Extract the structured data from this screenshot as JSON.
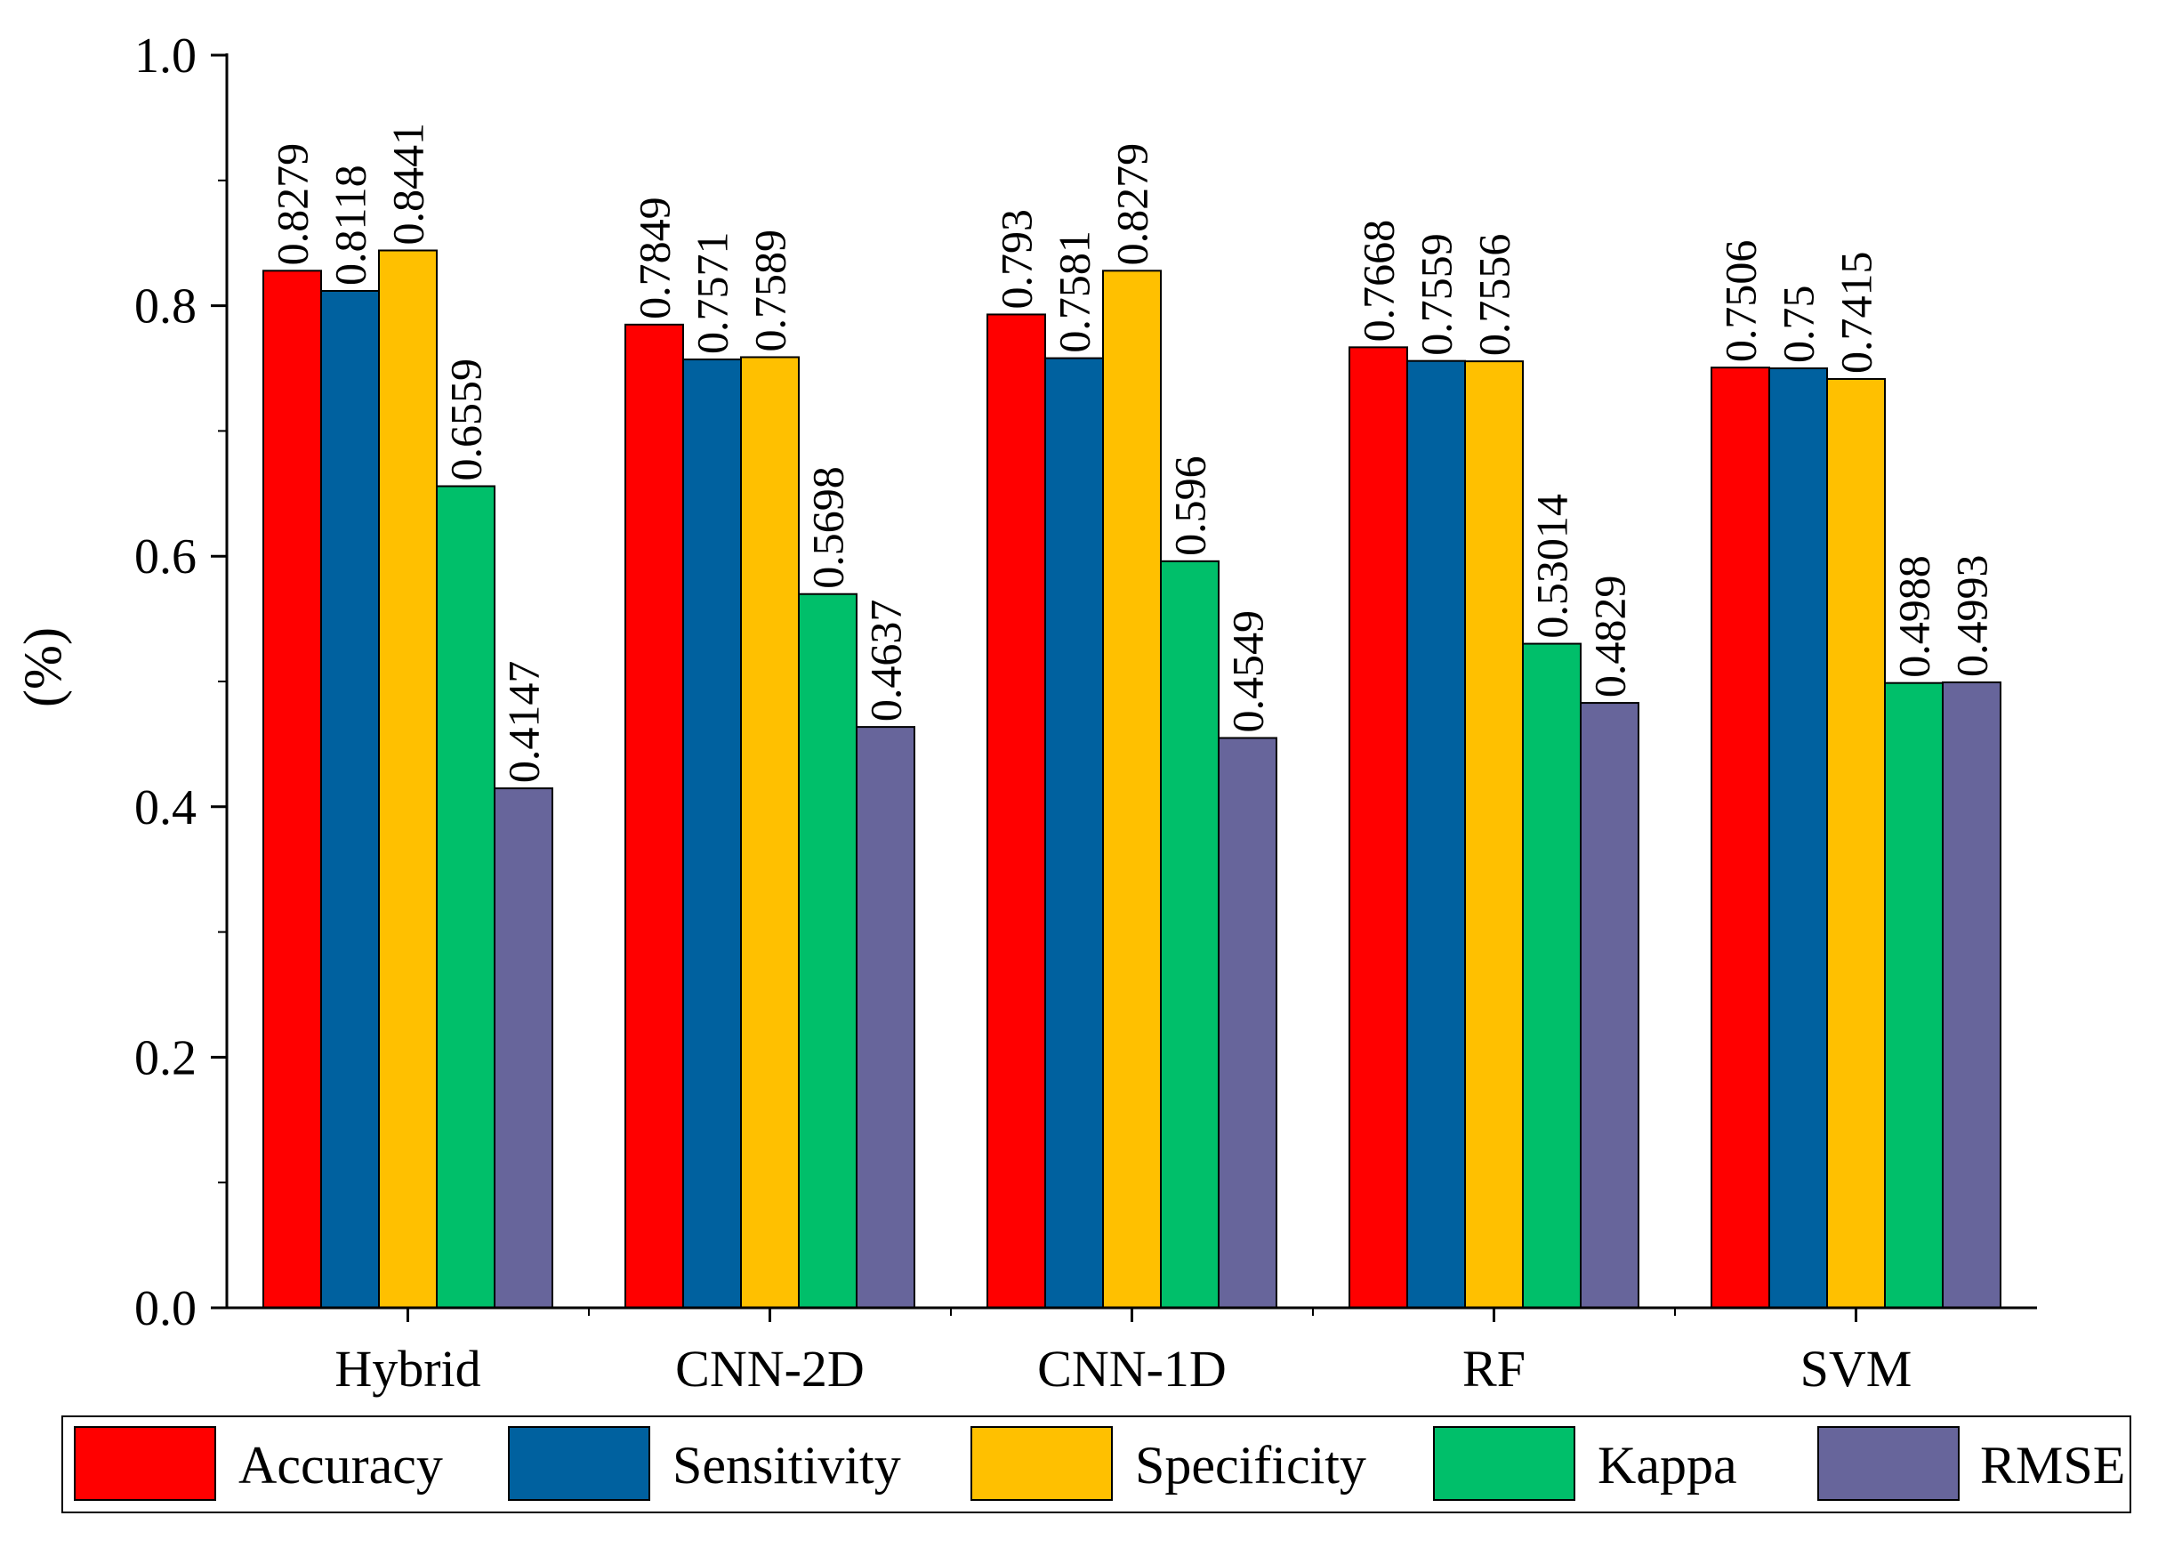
{
  "chart_data": {
    "type": "bar",
    "title": "",
    "xlabel": "",
    "ylabel": "(%)",
    "ylim": [
      0.0,
      1.0
    ],
    "yticks": [
      "0.0",
      "0.2",
      "0.4",
      "0.6",
      "0.8",
      "1.0"
    ],
    "categories": [
      "Hybrid",
      "CNN-2D",
      "CNN-1D",
      "RF",
      "SVM"
    ],
    "series": [
      {
        "name": "Accuracy",
        "color": "#ff0000",
        "values": [
          0.8279,
          0.7849,
          0.793,
          0.7668,
          0.7506
        ],
        "labels": [
          "0.8279",
          "0.7849",
          "0.793",
          "0.7668",
          "0.7506"
        ]
      },
      {
        "name": "Sensitivity",
        "color": "#00619f",
        "values": [
          0.8118,
          0.7571,
          0.7581,
          0.7559,
          0.75
        ],
        "labels": [
          "0.8118",
          "0.7571",
          "0.7581",
          "0.7559",
          "0.75"
        ]
      },
      {
        "name": "Specificity",
        "color": "#ffc000",
        "values": [
          0.8441,
          0.7589,
          0.8279,
          0.7556,
          0.7415
        ],
        "labels": [
          "0.8441",
          "0.7589",
          "0.8279",
          "0.7556",
          "0.7415"
        ]
      },
      {
        "name": "Kappa",
        "color": "#00bf6a",
        "values": [
          0.6559,
          0.5698,
          0.596,
          0.53014,
          0.4988
        ],
        "labels": [
          "0.6559",
          "0.5698",
          "0.596",
          "0.53014",
          "0.4988"
        ]
      },
      {
        "name": "RMSE",
        "color": "#67659b",
        "values": [
          0.4147,
          0.4637,
          0.4549,
          0.4829,
          0.4993
        ],
        "labels": [
          "0.4147",
          "0.4637",
          "0.4549",
          "0.4829",
          "0.4993"
        ]
      }
    ],
    "legend": "bottom",
    "grid": false
  }
}
